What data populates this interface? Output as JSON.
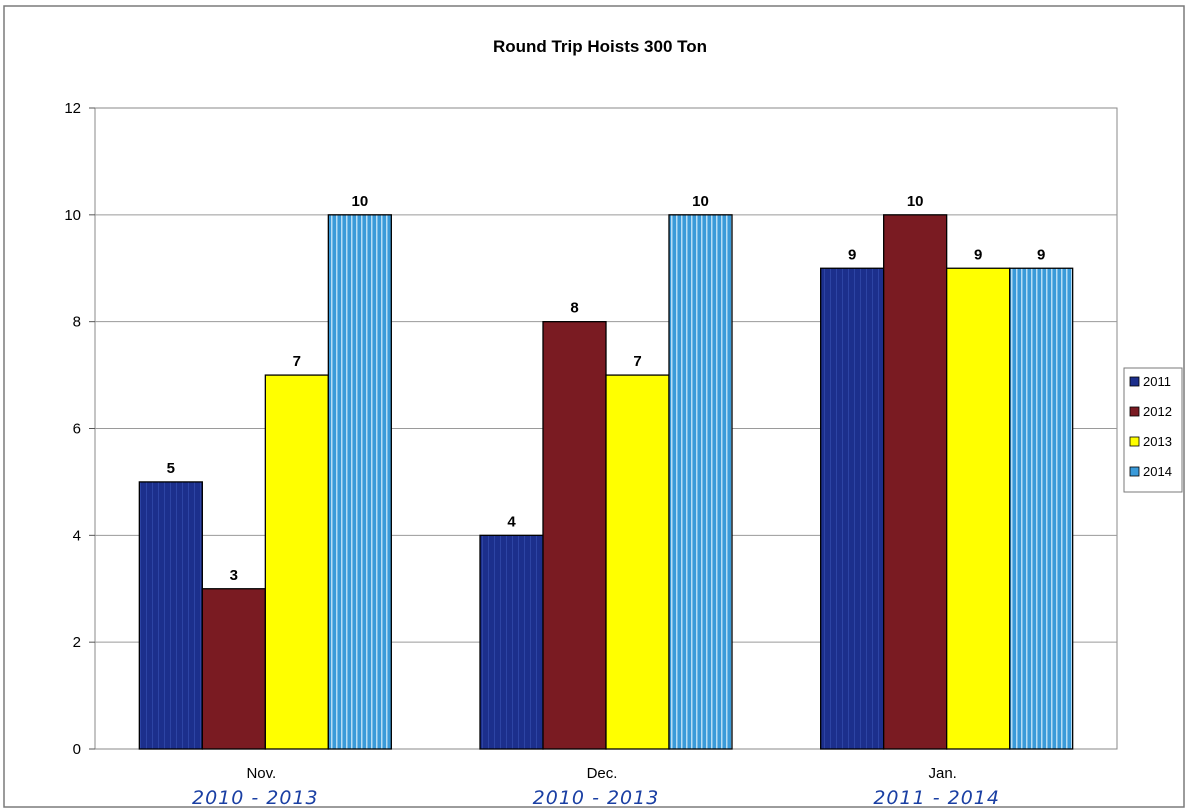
{
  "chart_data": {
    "type": "bar",
    "title": "Round Trip Hoists 300 Ton",
    "categories": [
      "Nov.",
      "Dec.",
      "Jan."
    ],
    "category_notes": [
      "2010 - 2013",
      "2010 - 2013",
      "2011 - 2014"
    ],
    "series": [
      {
        "name": "2011",
        "values": [
          5,
          4,
          9
        ],
        "color": "#1c2f8c"
      },
      {
        "name": "2012",
        "values": [
          3,
          8,
          10
        ],
        "color": "#7a1b22"
      },
      {
        "name": "2013",
        "values": [
          7,
          7,
          9
        ],
        "color": "#ffff00"
      },
      {
        "name": "2014",
        "values": [
          10,
          10,
          9
        ],
        "color": "#3a9ad9"
      }
    ],
    "ylim": [
      0,
      12
    ],
    "yticks": [
      0,
      2,
      4,
      6,
      8,
      10,
      12
    ],
    "grid": true,
    "legend": "right",
    "data_labels": true
  }
}
